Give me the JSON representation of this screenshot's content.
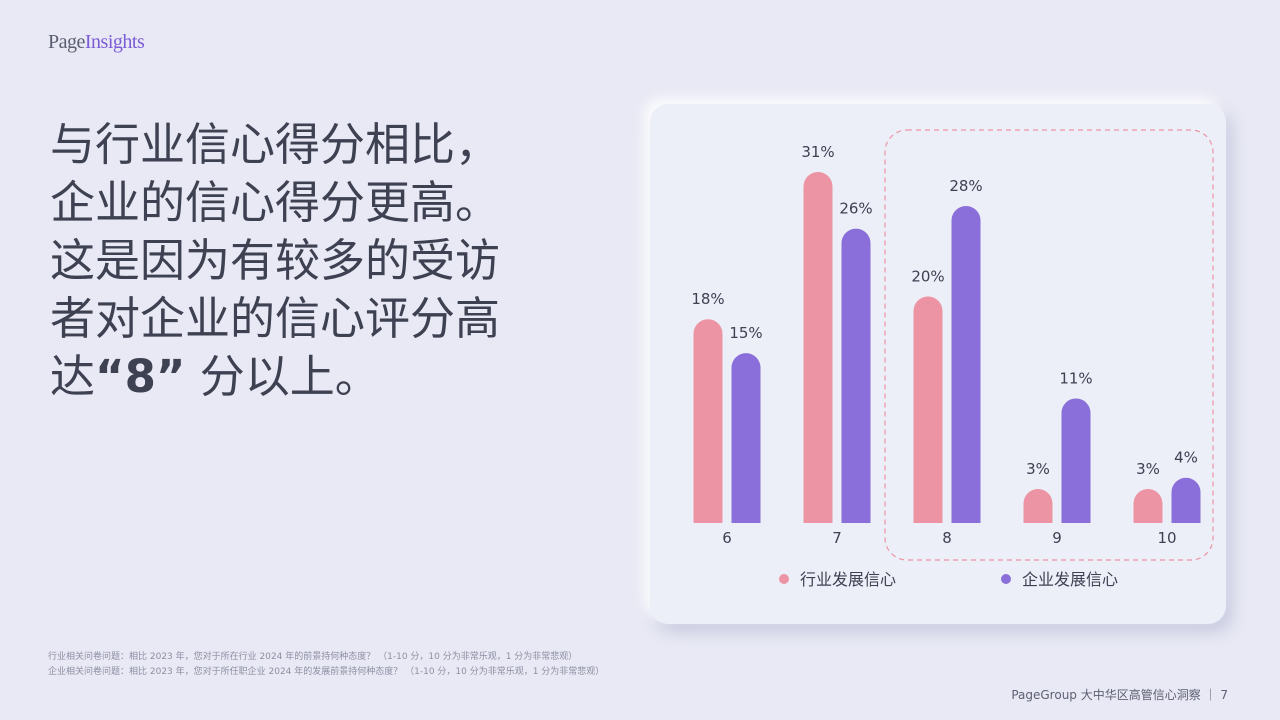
{
  "logo": {
    "part1": "Page",
    "part2": "Insights"
  },
  "headline": {
    "lines": [
      "与行业信心得分相比，",
      "企业的信心得分更高。",
      "这是因为有较多的受访",
      "者对企业的信心评分高"
    ],
    "last_prefix": "达",
    "last_bold": "“8”",
    "last_suffix": " 分以上。"
  },
  "chart_data": {
    "type": "bar",
    "categories": [
      "6",
      "7",
      "8",
      "9",
      "10"
    ],
    "series": [
      {
        "name": "行业发展信心",
        "values": [
          18,
          31,
          20,
          3,
          3
        ],
        "labels": [
          "18%",
          "31%",
          "20%",
          "3%",
          "3%"
        ],
        "color": "#ec94a4"
      },
      {
        "name": "企业发展信心",
        "values": [
          15,
          26,
          28,
          11,
          4
        ],
        "labels": [
          "15%",
          "26%",
          "28%",
          "11%",
          "4%"
        ],
        "color": "#8a6ed9"
      }
    ],
    "ylim": [
      0,
      31
    ],
    "highlight_categories": [
      "8",
      "9",
      "10"
    ],
    "highlight_color": "#ec94a4",
    "legend": "bottom",
    "grid": false
  },
  "footnotes": [
    "行业相关问卷问题：相比 2023 年，您对于所在行业 2024 年的前景持何种态度？ （1-10 分，10 分为非常乐观，1 分为非常悲观）",
    "企业相关问卷问题：相比 2023 年，您对于所任职企业 2024 年的发展前景持何种态度？ （1-10 分，10 分为非常乐观，1 分为非常悲观）"
  ],
  "footer": {
    "text": "PageGroup 大中华区高管信心洞察 ｜ 7"
  }
}
